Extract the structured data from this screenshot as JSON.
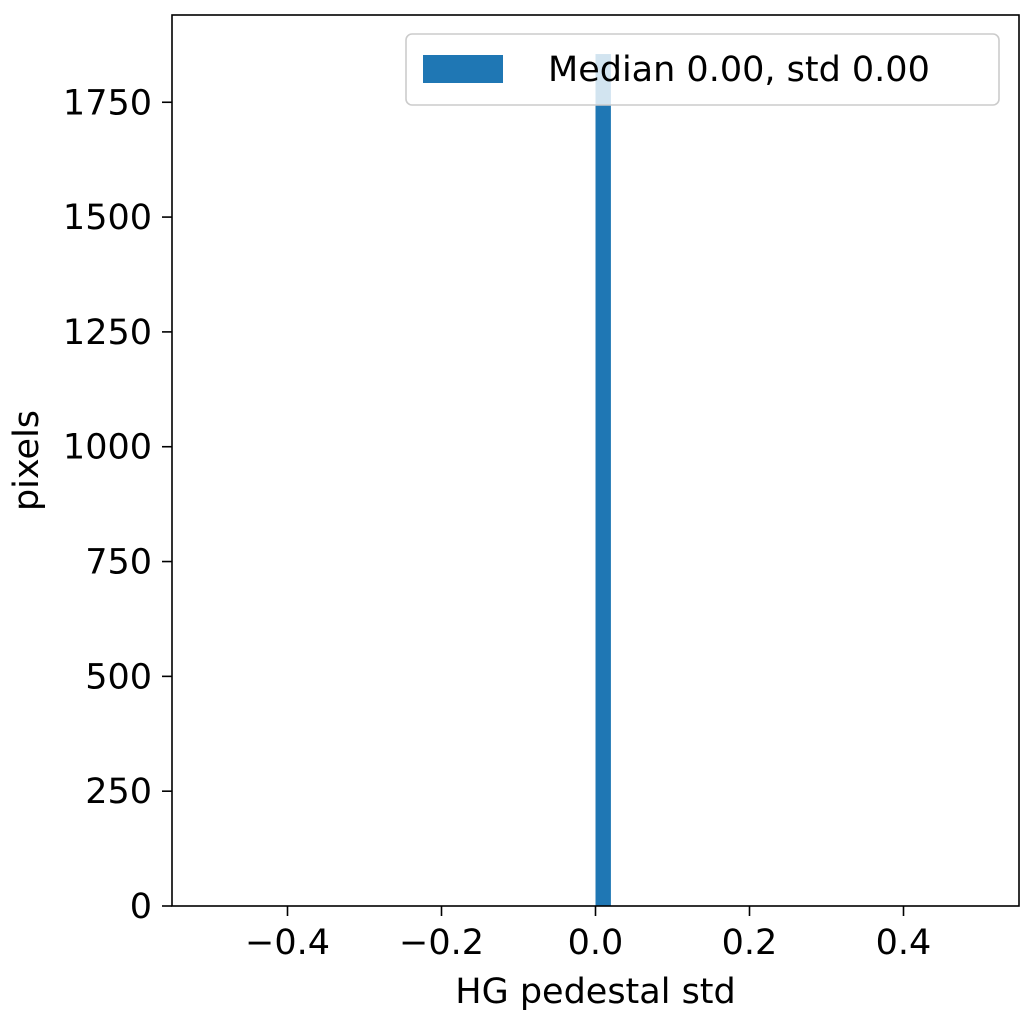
{
  "chart_data": {
    "type": "bar",
    "subtype": "histogram",
    "title": "",
    "xlabel": "HG pedestal std",
    "ylabel": "pixels",
    "xlim": [
      -0.55,
      0.55
    ],
    "ylim": [
      0,
      1940
    ],
    "xticks": [
      -0.4,
      -0.2,
      0.0,
      0.2,
      0.4
    ],
    "xtick_labels": [
      "−0.4",
      "−0.2",
      "0.0",
      "0.2",
      "0.4"
    ],
    "yticks": [
      0,
      250,
      500,
      750,
      1000,
      1250,
      1500,
      1750
    ],
    "ytick_labels": [
      "0",
      "250",
      "500",
      "750",
      "1000",
      "1250",
      "1500",
      "1750"
    ],
    "grid": false,
    "legend_position": "top-right",
    "series": [
      {
        "name": "Median 0.00, std 0.00",
        "color": "#1f77b4",
        "bins": [
          {
            "x0": 0.0,
            "x1": 0.02,
            "count": 1855
          }
        ]
      }
    ]
  }
}
